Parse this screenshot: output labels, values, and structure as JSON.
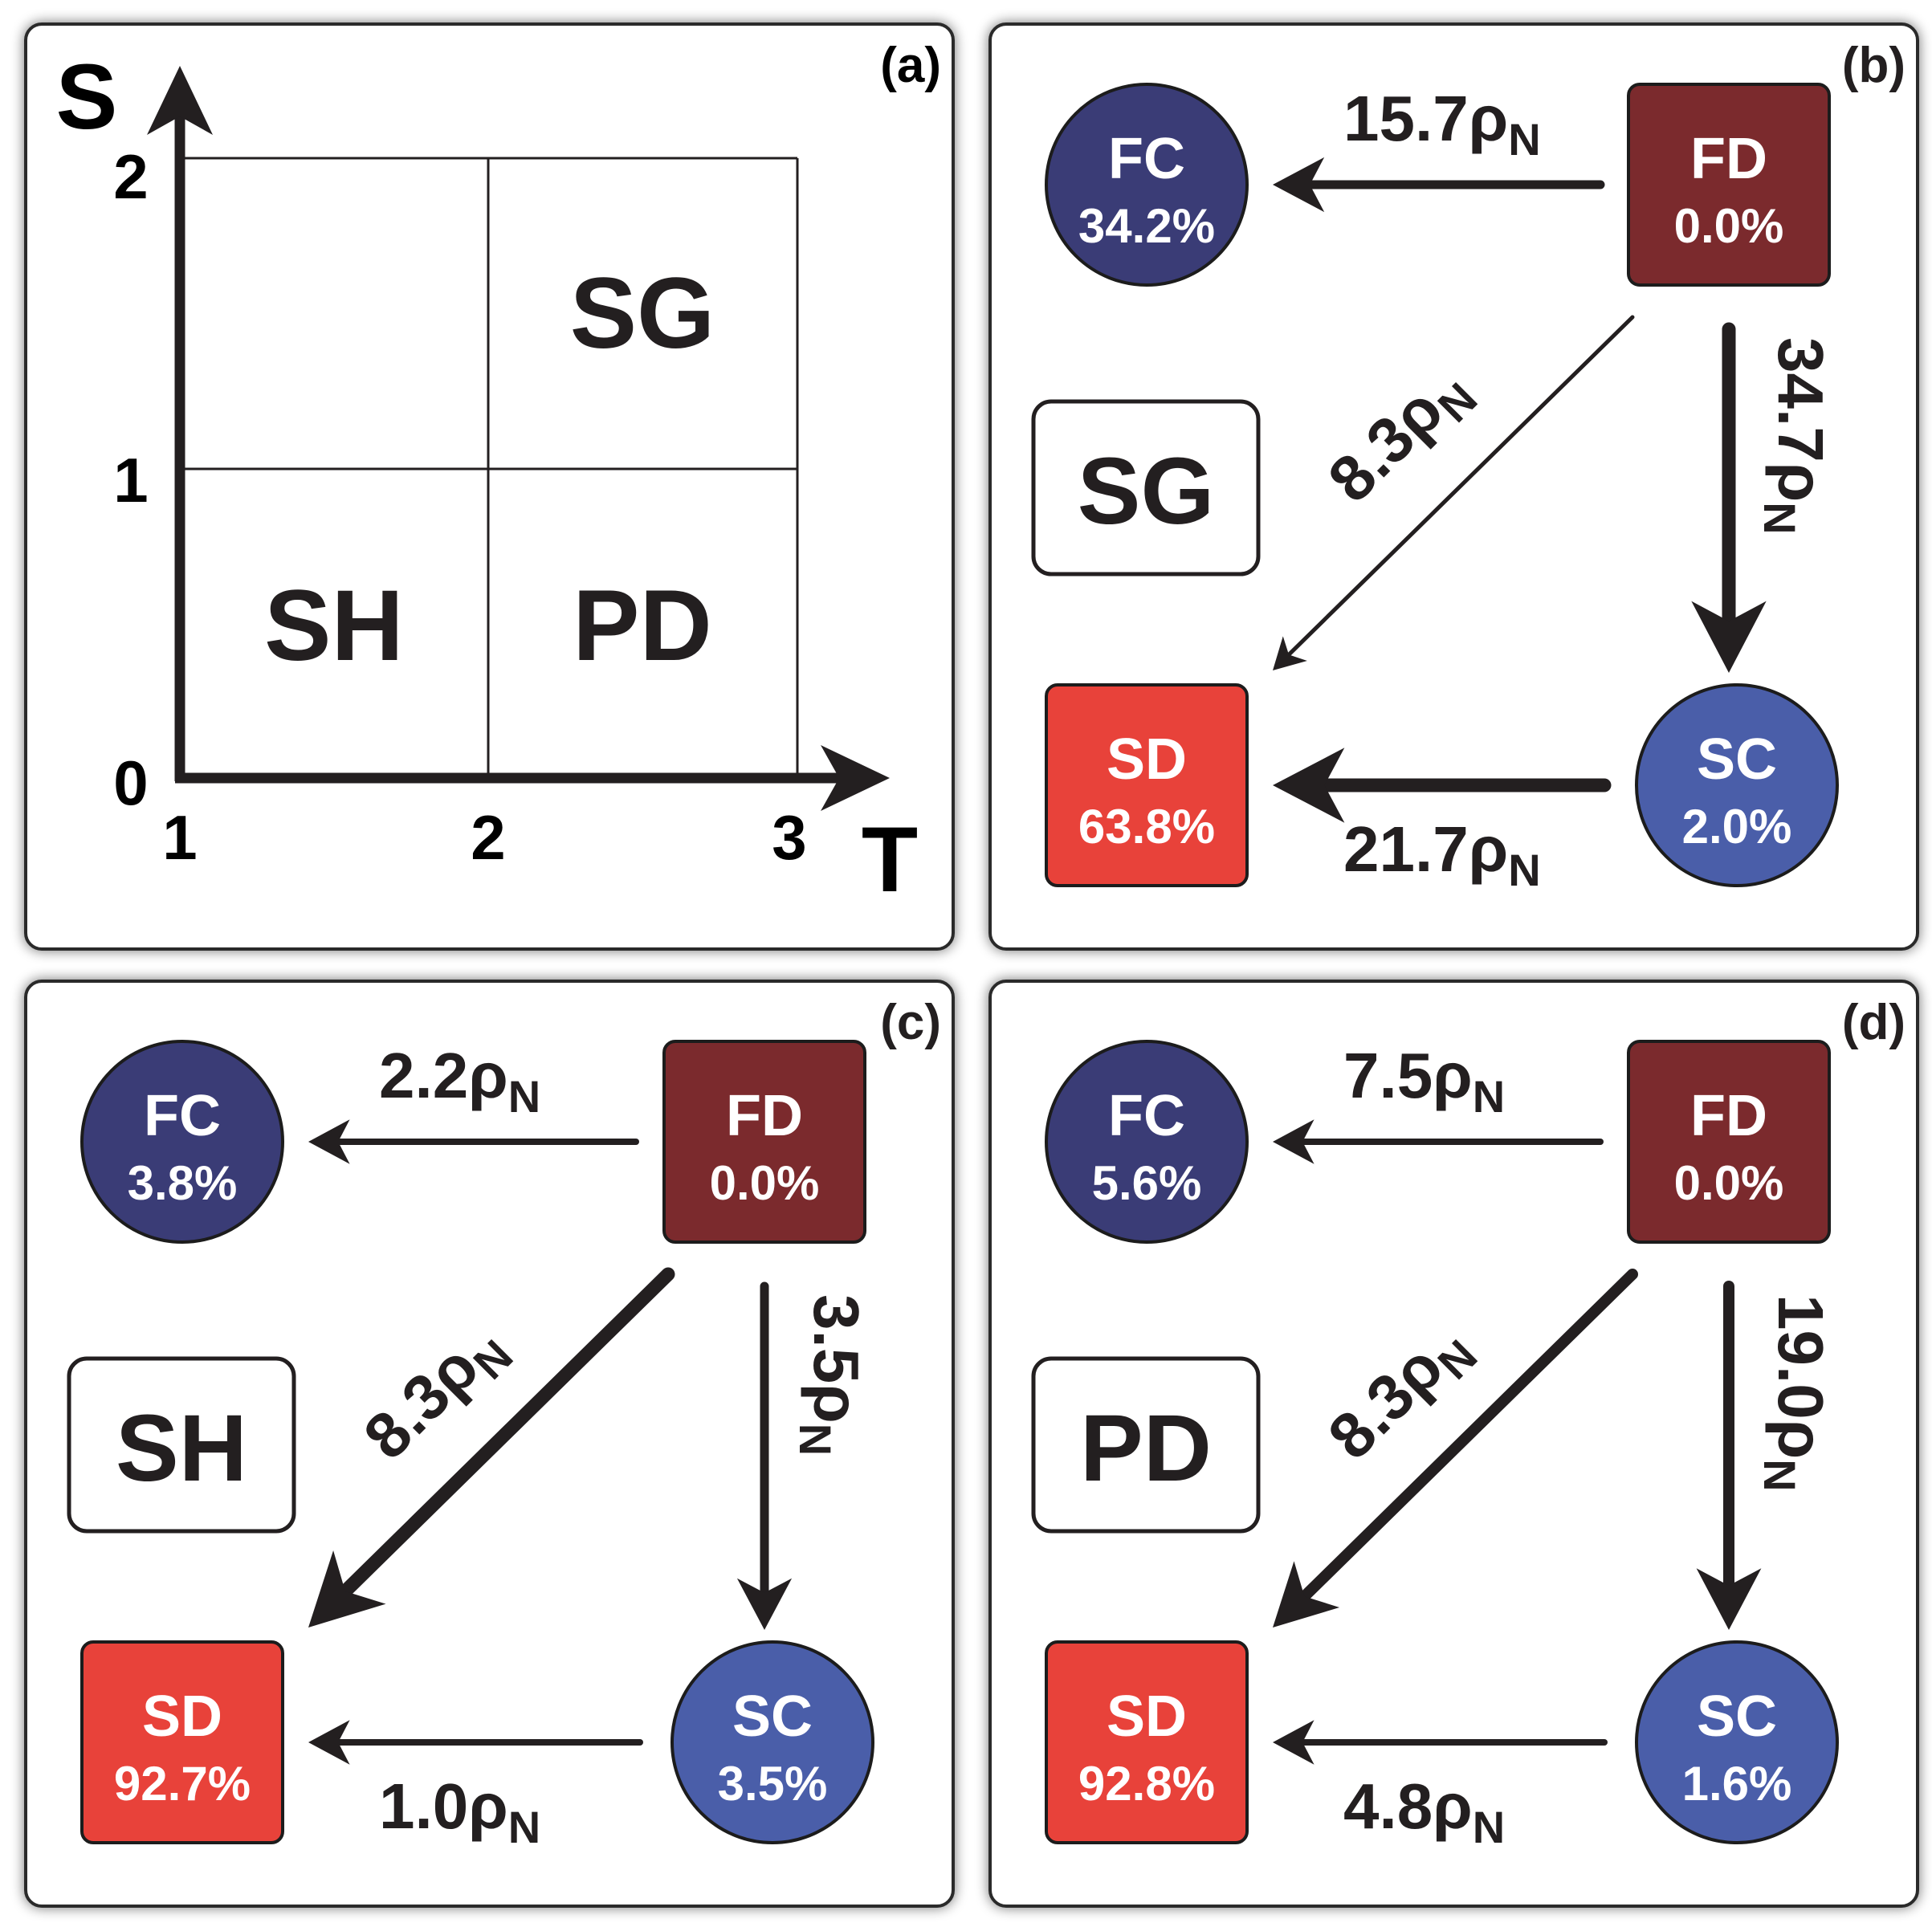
{
  "colors": {
    "fd": "#7b2a2d",
    "fc": "#3a3c76",
    "sc": "#4a5ea9",
    "sd": "#e8423a",
    "ink": "#231f20",
    "panel_border": "#2a2a2a"
  },
  "panel_a": {
    "label": "(a)",
    "y_axis_label": "S",
    "x_axis_label": "T",
    "y_ticks": [
      "0",
      "1",
      "2"
    ],
    "x_ticks": [
      "1",
      "2",
      "3"
    ],
    "regions": {
      "sg": "SG",
      "sh": "SH",
      "pd": "PD"
    }
  },
  "flow_panels": [
    {
      "label": "(b)",
      "game": "SG",
      "nodes": {
        "fc": {
          "name": "FC",
          "pct": "34.2%"
        },
        "fd": {
          "name": "FD",
          "pct": "0.0%"
        },
        "sd": {
          "name": "SD",
          "pct": "63.8%"
        },
        "sc": {
          "name": "SC",
          "pct": "2.0%"
        }
      },
      "flows": {
        "fd_fc": {
          "value": "15.7",
          "symbol": "ρ",
          "sub": "N"
        },
        "fd_sc": {
          "value": "34.7",
          "symbol": "ρ",
          "sub": "N"
        },
        "fd_sd": {
          "value": "8.3",
          "symbol": "ρ",
          "sub": "N"
        },
        "sc_sd": {
          "value": "21.7",
          "symbol": "ρ",
          "sub": "N"
        }
      }
    },
    {
      "label": "(c)",
      "game": "SH",
      "nodes": {
        "fc": {
          "name": "FC",
          "pct": "3.8%"
        },
        "fd": {
          "name": "FD",
          "pct": "0.0%"
        },
        "sd": {
          "name": "SD",
          "pct": "92.7%"
        },
        "sc": {
          "name": "SC",
          "pct": "3.5%"
        }
      },
      "flows": {
        "fd_fc": {
          "value": "2.2",
          "symbol": "ρ",
          "sub": "N"
        },
        "fd_sc": {
          "value": "3.5",
          "symbol": "ρ",
          "sub": "N"
        },
        "fd_sd": {
          "value": "8.3",
          "symbol": "ρ",
          "sub": "N"
        },
        "sc_sd": {
          "value": "1.0",
          "symbol": "ρ",
          "sub": "N"
        }
      }
    },
    {
      "label": "(d)",
      "game": "PD",
      "nodes": {
        "fc": {
          "name": "FC",
          "pct": "5.6%"
        },
        "fd": {
          "name": "FD",
          "pct": "0.0%"
        },
        "sd": {
          "name": "SD",
          "pct": "92.8%"
        },
        "sc": {
          "name": "SC",
          "pct": "1.6%"
        }
      },
      "flows": {
        "fd_fc": {
          "value": "7.5",
          "symbol": "ρ",
          "sub": "N"
        },
        "fd_sc": {
          "value": "19.0",
          "symbol": "ρ",
          "sub": "N"
        },
        "fd_sd": {
          "value": "8.3",
          "symbol": "ρ",
          "sub": "N"
        },
        "sc_sd": {
          "value": "4.8",
          "symbol": "ρ",
          "sub": "N"
        }
      }
    }
  ]
}
